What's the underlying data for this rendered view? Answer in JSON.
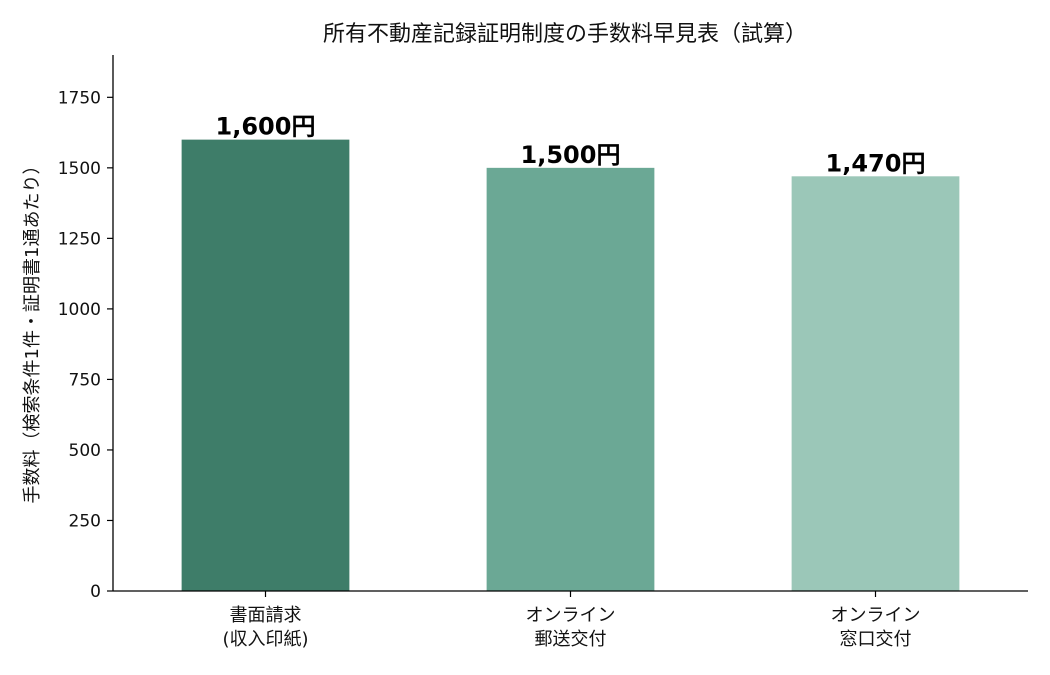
{
  "chart_data": {
    "type": "bar",
    "title": "所有不動産記録証明制度の手数料早見表（試算）",
    "ylabel": "手数料（検索条件1件・証明書1通あたり）",
    "xlabel": "",
    "categories": [
      [
        "書面請求",
        "(収入印紙)"
      ],
      [
        "オンライン",
        "郵送交付"
      ],
      [
        "オンライン",
        "窓口交付"
      ]
    ],
    "values": [
      1600,
      1500,
      1470
    ],
    "data_labels": [
      "1,600円",
      "1,500円",
      "1,470円"
    ],
    "colors": [
      "#3e7d69",
      "#6ba895",
      "#9bc7b8"
    ],
    "ylim": [
      0,
      1900
    ],
    "yticks": [
      0,
      250,
      500,
      750,
      1000,
      1250,
      1500,
      1750
    ],
    "grid": false,
    "legend": "none"
  }
}
